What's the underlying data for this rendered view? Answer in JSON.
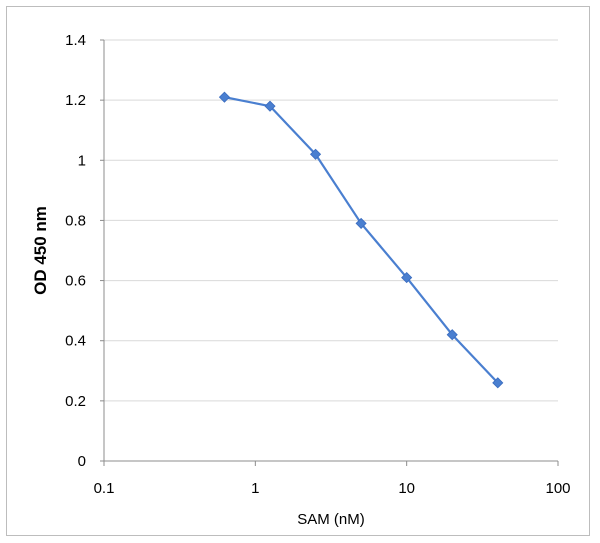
{
  "chart_data": {
    "type": "line",
    "title": "",
    "xlabel": "SAM (nM)",
    "ylabel": "OD 450 nm",
    "xscale": "log",
    "xlim": [
      0.1,
      100
    ],
    "ylim": [
      0,
      1.4
    ],
    "x_ticks": [
      {
        "value": 0.1,
        "label": "0.1"
      },
      {
        "value": 1,
        "label": "1"
      },
      {
        "value": 10,
        "label": "10"
      },
      {
        "value": 100,
        "label": "100"
      }
    ],
    "y_ticks": [
      {
        "value": 0,
        "label": "0"
      },
      {
        "value": 0.2,
        "label": "0.2"
      },
      {
        "value": 0.4,
        "label": "0.4"
      },
      {
        "value": 0.6,
        "label": "0.6"
      },
      {
        "value": 0.8,
        "label": "0.8"
      },
      {
        "value": 1.0,
        "label": "1"
      },
      {
        "value": 1.2,
        "label": "1.2"
      },
      {
        "value": 1.4,
        "label": "1.4"
      }
    ],
    "grid": true,
    "legend": "none",
    "series": [
      {
        "name": "OD 450 nm",
        "color": "#4a7fd0",
        "marker": "diamond",
        "points": [
          {
            "x": 0.625,
            "y": 1.21
          },
          {
            "x": 1.25,
            "y": 1.18
          },
          {
            "x": 2.5,
            "y": 1.02
          },
          {
            "x": 5,
            "y": 0.79
          },
          {
            "x": 10,
            "y": 0.61
          },
          {
            "x": 20,
            "y": 0.42
          },
          {
            "x": 40,
            "y": 0.26
          }
        ]
      }
    ]
  }
}
